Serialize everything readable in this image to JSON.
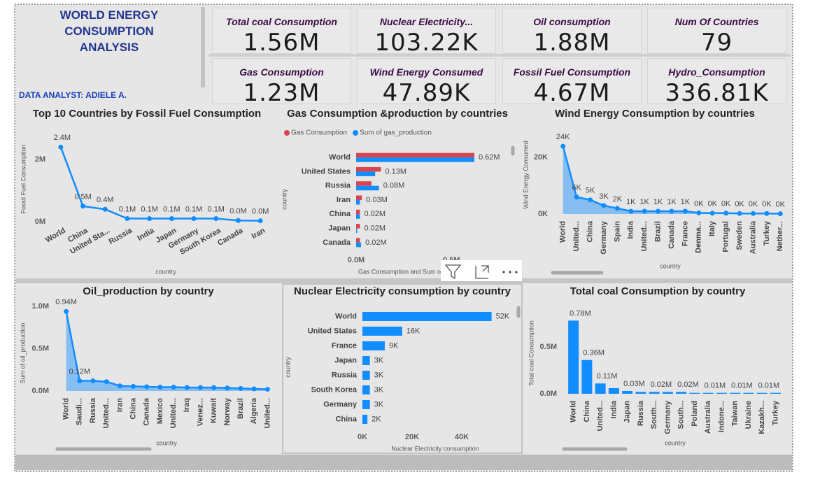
{
  "header": {
    "title": "WORLD ENERGY CONSUMPTION ANALYSIS",
    "subtitle": "DATA ANALYST: ADIELE A."
  },
  "cards": [
    {
      "label": "Total coal Consumption",
      "value": "1.56M"
    },
    {
      "label": "Nuclear Electricity...",
      "value": "103.22K"
    },
    {
      "label": "Oil consumption",
      "value": "1.88M"
    },
    {
      "label": "Num Of Countries",
      "value": "79"
    },
    {
      "label": "Gas Consumption",
      "value": "1.23M"
    },
    {
      "label": "Wind Energy Consumed",
      "value": "47.89K"
    },
    {
      "label": "Fossil Fuel Consumption",
      "value": "4.67M"
    },
    {
      "label": "Hydro_Consumption",
      "value": "336.81K"
    }
  ],
  "chart_data": [
    {
      "type": "line",
      "title": "Top 10 Countries by Fossil Fuel Consumption",
      "xlabel": "country",
      "ylabel": "Fossil Fuel Consumption",
      "categories": [
        "World",
        "China",
        "United Sta...",
        "Russia",
        "India",
        "Japan",
        "Germany",
        "South Korea",
        "Canada",
        "Iran"
      ],
      "series": [
        {
          "color": "#118dff",
          "values": [
            2.4,
            0.5,
            0.4,
            0.1,
            0.1,
            0.1,
            0.1,
            0.1,
            0.04,
            0.03
          ],
          "value_labels": [
            "2.4M",
            "0.5M",
            "0.4M",
            "0.1M",
            "0.1M",
            "0.1M",
            "0.1M",
            "0.1M",
            "0.0M",
            "0.0M"
          ]
        }
      ],
      "ylim": [
        0,
        2.7
      ],
      "yticks": [
        {
          "value": 0,
          "label": "0M"
        },
        {
          "value": 2,
          "label": "2M"
        }
      ]
    },
    {
      "type": "bar",
      "orientation": "horizontal",
      "title": "Gas Consumption &production by countries",
      "xlabel": "Gas Consumption and Sum of gas_production",
      "ylabel": "country",
      "legend": "top-left",
      "categories": [
        "World",
        "United States",
        "Russia",
        "Iran",
        "China",
        "Japan",
        "Canada"
      ],
      "series": [
        {
          "name": "Gas Consumption",
          "color": "#d64550",
          "values": [
            0.62,
            0.13,
            0.08,
            0.03,
            0.02,
            0.02,
            0.02
          ],
          "value_labels": [
            "0.62M",
            "0.13M",
            "0.08M",
            "0.03M",
            "0.02M",
            "0.02M",
            "0.02M"
          ]
        },
        {
          "name": "Sum of gas_production",
          "color": "#118dff",
          "values": [
            0.62,
            0.1,
            0.12,
            0.02,
            0.02,
            0.005,
            0.026
          ]
        }
      ],
      "xlim": [
        0,
        0.8
      ],
      "xticks": [
        {
          "value": 0,
          "label": "0.0M"
        },
        {
          "value": 0.5,
          "label": "0.5M"
        }
      ]
    },
    {
      "type": "area",
      "title": "Wind Energy Consumption by countries",
      "xlabel": "country",
      "ylabel": "Wind Energy Consumed",
      "categories": [
        "World",
        "United...",
        "China",
        "Germany",
        "Spain",
        "India",
        "United...",
        "Brazil",
        "Canada",
        "France",
        "Denma...",
        "Italy",
        "Portugal",
        "Sweden",
        "Australia",
        "Turkey",
        "Nether..."
      ],
      "series": [
        {
          "color": "#118dff",
          "values": [
            24,
            6,
            5,
            3,
            2,
            1,
            1,
            1,
            1,
            1,
            0.4,
            0.3,
            0.3,
            0.2,
            0.2,
            0.2,
            0.1
          ],
          "value_labels": [
            "24K",
            "6K",
            "5K",
            "3K",
            "2K",
            "1K",
            "1K",
            "1K",
            "1K",
            "1K",
            "0K",
            "0K",
            "0K",
            "0K",
            "0K",
            "0K",
            "0K"
          ]
        }
      ],
      "ylim": [
        0,
        27
      ],
      "yticks": [
        {
          "value": 0,
          "label": "0K"
        },
        {
          "value": 20,
          "label": "20K"
        }
      ]
    },
    {
      "type": "area",
      "title": "Oil_production by country",
      "xlabel": "country",
      "ylabel": "Sum of oil_production",
      "categories": [
        "World",
        "Saudi...",
        "Russia",
        "United...",
        "Iran",
        "China",
        "Canada",
        "Mexico",
        "United...",
        "Iraq",
        "Venez...",
        "Kuwait",
        "Norway",
        "Brazil",
        "Algeria",
        "United..."
      ],
      "series": [
        {
          "color": "#118dff",
          "values": [
            0.94,
            0.12,
            0.12,
            0.11,
            0.06,
            0.055,
            0.05,
            0.045,
            0.045,
            0.04,
            0.04,
            0.04,
            0.035,
            0.03,
            0.025,
            0.02
          ],
          "value_labels": [
            "0.94M",
            "0.12M",
            null,
            null,
            null,
            null,
            null,
            null,
            null,
            null,
            null,
            null,
            null,
            null,
            null,
            null
          ]
        }
      ],
      "ylim": [
        0,
        1.05
      ],
      "yticks": [
        {
          "value": 0,
          "label": "0.0M"
        },
        {
          "value": 0.5,
          "label": "0.5M"
        },
        {
          "value": 1,
          "label": "1.0M"
        }
      ]
    },
    {
      "type": "bar",
      "orientation": "horizontal",
      "title": "Nuclear Electricity consumption by country",
      "xlabel": "Nuclear Electricity consumption",
      "ylabel": "country",
      "categories": [
        "World",
        "United States",
        "France",
        "Japan",
        "Russia",
        "South Korea",
        "Germany",
        "China"
      ],
      "series": [
        {
          "color": "#118dff",
          "values": [
            52,
            16,
            9,
            3,
            3,
            3,
            3,
            2
          ],
          "value_labels": [
            "52K",
            "16K",
            "9K",
            "3K",
            "3K",
            "3K",
            "3K",
            "2K"
          ]
        }
      ],
      "xlim": [
        0,
        60
      ],
      "xticks": [
        {
          "value": 0,
          "label": "0K"
        },
        {
          "value": 20,
          "label": "20K"
        },
        {
          "value": 40,
          "label": "40K"
        }
      ]
    },
    {
      "type": "bar",
      "title": "Total coal Consumption by country",
      "xlabel": "country",
      "ylabel": "Total coal Consumption",
      "categories": [
        "World",
        "China",
        "United...",
        "India",
        "Japan",
        "Russia",
        "South...",
        "Germany",
        "South...",
        "Poland",
        "Australia",
        "Indone...",
        "Taiwan",
        "Ukraine",
        "Kazakh...",
        "Turkey"
      ],
      "series": [
        {
          "color": "#118dff",
          "values": [
            0.78,
            0.36,
            0.11,
            0.06,
            0.03,
            0.02,
            0.02,
            0.02,
            0.02,
            0.01,
            0.01,
            0.01,
            0.01,
            0.01,
            0.01,
            0.01
          ],
          "value_labels": [
            "0.78M",
            "0.36M",
            "0.11M",
            null,
            "0.03M",
            null,
            "0.02M",
            null,
            "0.02M",
            null,
            "0.01M",
            null,
            "0.01M",
            null,
            "0.01M",
            null
          ]
        }
      ],
      "ylim": [
        0,
        0.85
      ],
      "yticks": [
        {
          "value": 0,
          "label": "0.0M"
        },
        {
          "value": 0.5,
          "label": "0.5M"
        }
      ]
    }
  ]
}
